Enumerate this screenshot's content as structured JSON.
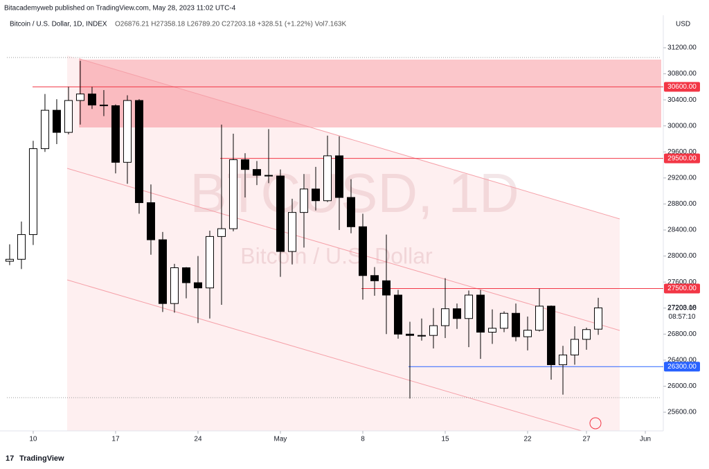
{
  "header": {
    "publisher": "Bitacademyweb published on TradingView.com, May 28, 2023 11:02 UTC-4"
  },
  "footer": {
    "brand": "TradingView"
  },
  "chart_data": {
    "type": "candlestick",
    "title": "Bitcoin / U.S. Dollar, 1D, INDEX",
    "ohlc_legend": "O26876.21 H27358.18 L26789.20 C27203.18 +328.51 (+1.22%) Vol7.163K",
    "watermark": "BTCUSD, 1D",
    "watermark_sub": "Bitcoin / U.S. Dollar",
    "currency": "USD",
    "countdown": "08:57:10",
    "up_color": "#ffffff",
    "down_color": "#000000",
    "border_color": "#000000",
    "open": [
      27920,
      27950,
      28330,
      29650,
      30240,
      29900,
      30390,
      30490,
      30320,
      30310,
      29440,
      30390,
      28820,
      28250,
      27270,
      27820,
      27590,
      27510,
      28300,
      28420,
      29480,
      29330,
      29240,
      29230,
      28070,
      28670,
      29030,
      28850,
      29540,
      28900,
      28450,
      27700,
      27620,
      27400,
      26800,
      26780,
      26780,
      26930,
      27190,
      27040,
      27400,
      26830,
      26890,
      27120,
      26760,
      26860,
      27230,
      26330,
      26480,
      26720,
      26876.21
    ],
    "high": [
      28180,
      28530,
      29770,
      30490,
      30410,
      30600,
      31000,
      30600,
      30550,
      30330,
      30470,
      30410,
      29100,
      28370,
      27880,
      27830,
      28000,
      28390,
      30020,
      29880,
      29580,
      29460,
      29950,
      29330,
      28880,
      29260,
      29370,
      29850,
      29840,
      29180,
      28650,
      27830,
      28330,
      27480,
      26990,
      27040,
      27200,
      27660,
      27270,
      27470,
      27480,
      27180,
      27150,
      27270,
      27070,
      27500,
      27240,
      26620,
      26920,
      26900,
      27358.18
    ],
    "low": [
      27860,
      27800,
      28170,
      29600,
      29720,
      29870,
      30020,
      30260,
      30150,
      29270,
      29110,
      28650,
      28020,
      27140,
      27130,
      27350,
      26970,
      27040,
      27250,
      28380,
      28900,
      29090,
      29120,
      27680,
      27870,
      28130,
      28700,
      28830,
      28400,
      28350,
      27330,
      27390,
      26800,
      26730,
      25810,
      26700,
      26580,
      26740,
      26880,
      26600,
      26420,
      26650,
      26830,
      26690,
      26550,
      26840,
      26100,
      25870,
      26330,
      26560,
      26789.2
    ],
    "close": [
      27950,
      28330,
      29650,
      30240,
      29900,
      30390,
      30490,
      30320,
      30310,
      29440,
      30390,
      28820,
      28250,
      27270,
      27820,
      27590,
      27510,
      28300,
      28420,
      29480,
      29330,
      29240,
      29230,
      28070,
      28670,
      29030,
      28850,
      29540,
      28900,
      28450,
      27700,
      27620,
      27400,
      26800,
      26780,
      26780,
      26930,
      27190,
      27040,
      27400,
      26830,
      26890,
      27120,
      26760,
      26860,
      27230,
      26330,
      26480,
      26720,
      26870,
      27203.18
    ],
    "xlim": [
      -0.82,
      55.35
    ],
    "xticks": [
      {
        "value": 2,
        "label": "10"
      },
      {
        "value": 9,
        "label": "17"
      },
      {
        "value": 16,
        "label": "24"
      },
      {
        "value": 23,
        "label": "May"
      },
      {
        "value": 30,
        "label": "8"
      },
      {
        "value": 37,
        "label": "15"
      },
      {
        "value": 44,
        "label": "22"
      },
      {
        "value": 49,
        "label": "27"
      },
      {
        "value": 54,
        "label": "Jun"
      }
    ],
    "ylim": [
      25313,
      31700
    ],
    "yticks": [
      {
        "value": 25600,
        "label": "25600.00"
      },
      {
        "value": 26000,
        "label": "26000.00"
      },
      {
        "value": 26400,
        "label": "26400.00"
      },
      {
        "value": 26800,
        "label": "26800.00"
      },
      {
        "value": 27200,
        "label": "27200.00"
      },
      {
        "value": 27600,
        "label": "27600.00"
      },
      {
        "value": 28000,
        "label": "28000.00"
      },
      {
        "value": 28400,
        "label": "28400.00"
      },
      {
        "value": 28800,
        "label": "28800.00"
      },
      {
        "value": 29200,
        "label": "29200.00"
      },
      {
        "value": 29600,
        "label": "29600.00"
      },
      {
        "value": 30000,
        "label": "30000.00"
      },
      {
        "value": 30400,
        "label": "30400.00"
      },
      {
        "value": 30800,
        "label": "30800.00"
      },
      {
        "value": 31200,
        "label": "31200.00"
      }
    ],
    "last_price": {
      "value": 27203.18,
      "label": "27203.18"
    },
    "levels": [
      {
        "value": 30600,
        "label": "30600.00",
        "color": "#f23645"
      },
      {
        "value": 29500,
        "label": "29500.00",
        "color": "#f23645"
      },
      {
        "value": 27500,
        "label": "27500.00",
        "color": "#f23645"
      },
      {
        "value": 26300,
        "label": "26300.00",
        "color": "#2962ff"
      }
    ]
  }
}
